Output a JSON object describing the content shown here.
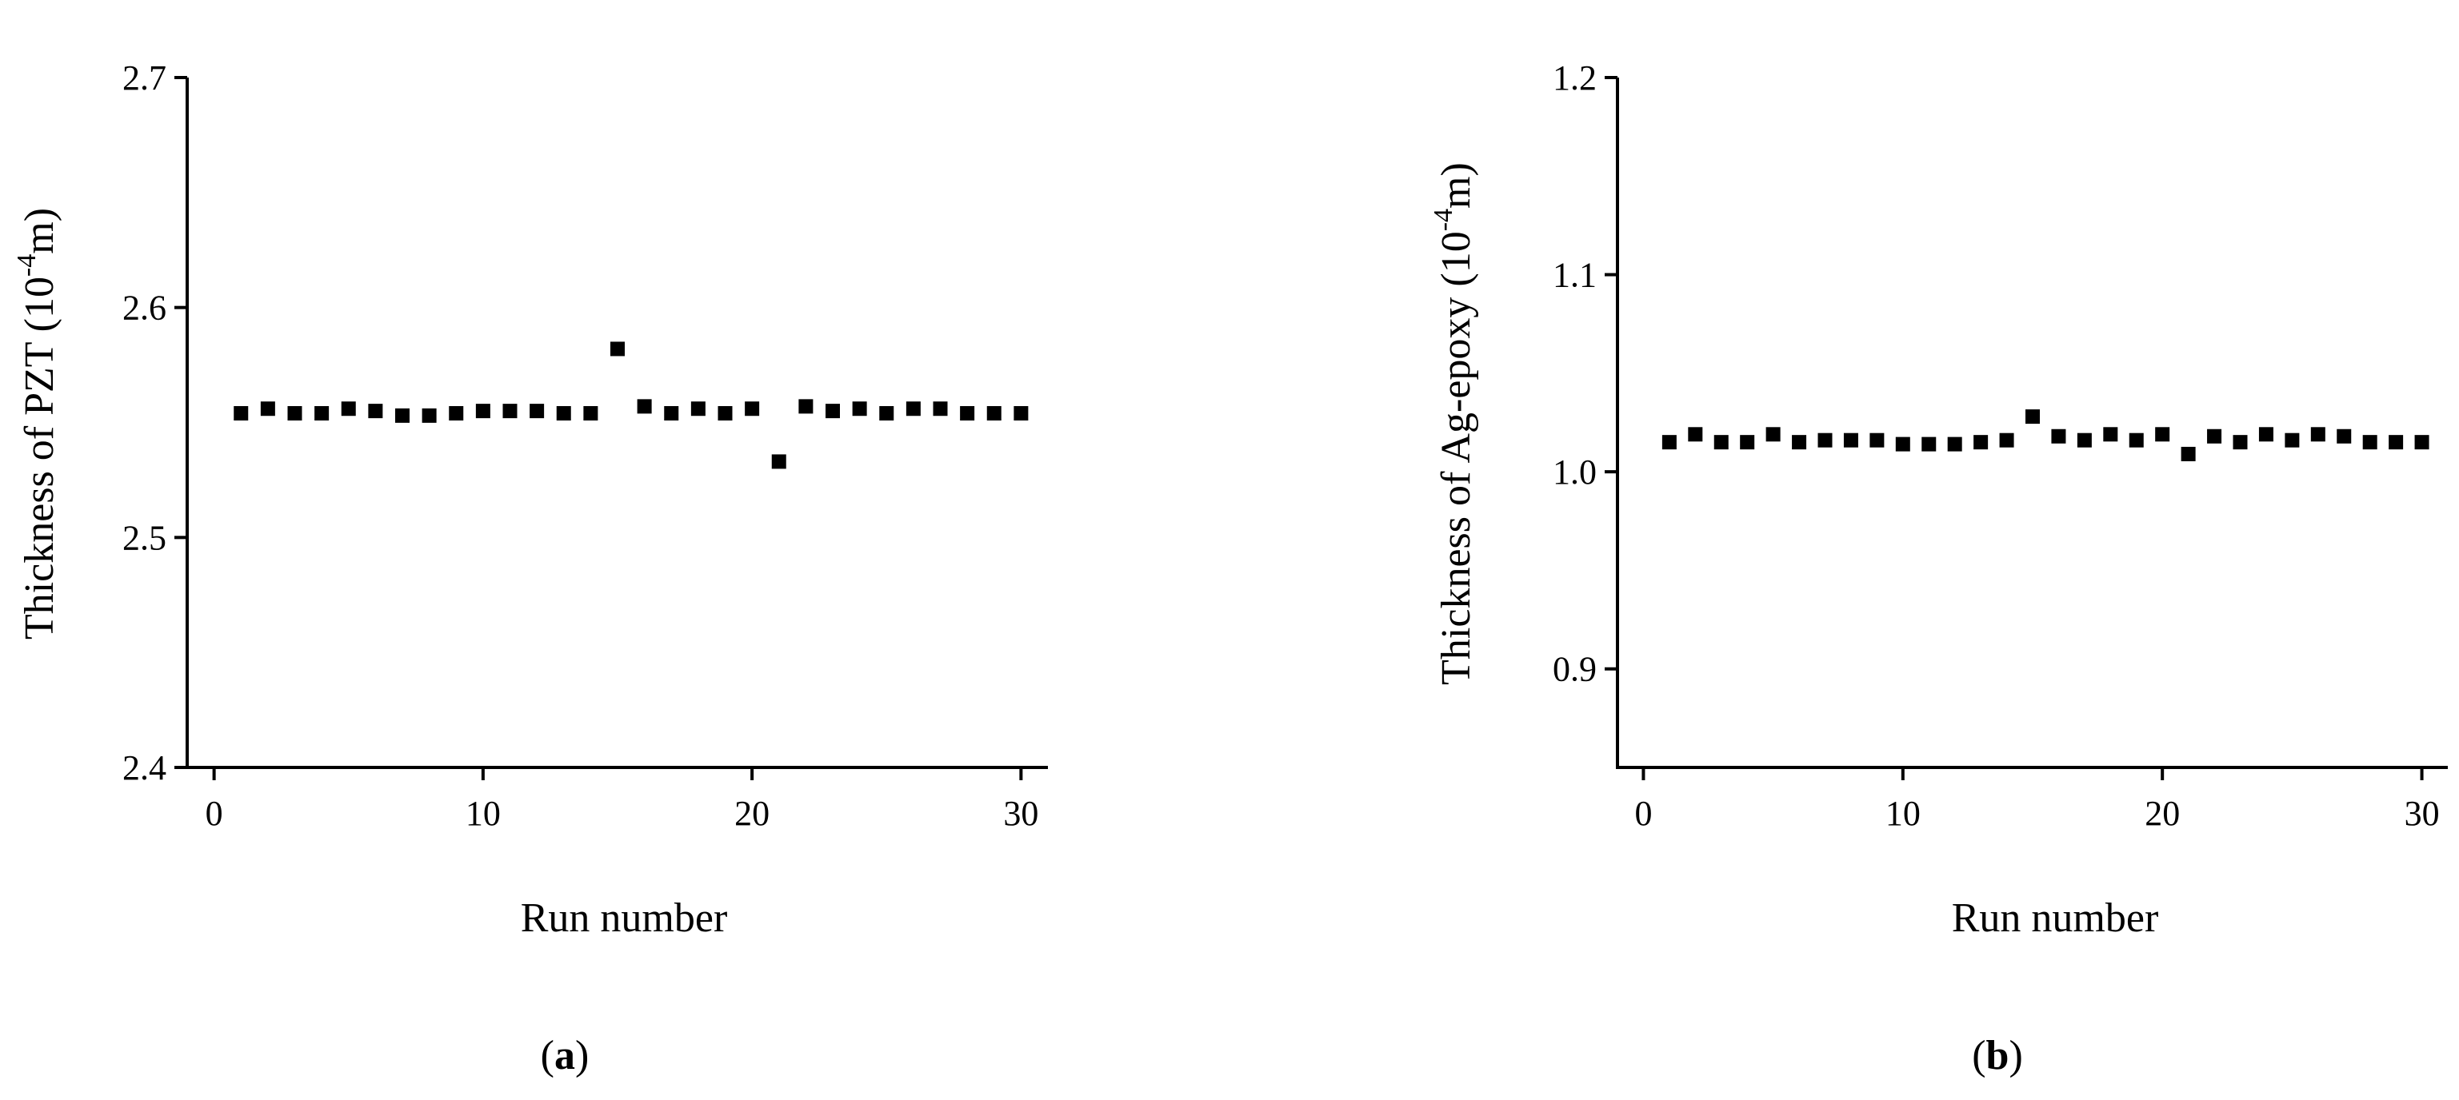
{
  "chart_data": [
    {
      "type": "scatter",
      "panel_label": "a",
      "xlabel": "Run number",
      "ylabel_main": "Thickness of PZT (10",
      "ylabel_sup": "-4",
      "ylabel_end": "m)",
      "xlim": [
        -1,
        31
      ],
      "ylim": [
        2.4,
        2.7
      ],
      "xticks": [
        "0",
        "10",
        "20",
        "30"
      ],
      "xtick_values": [
        0,
        10,
        20,
        30
      ],
      "yticks": [
        "2.4",
        "2.5",
        "2.6",
        "2.7"
      ],
      "ytick_values": [
        2.4,
        2.5,
        2.6,
        2.7
      ],
      "grid": false,
      "marker_color": "#000000",
      "x": [
        1,
        2,
        3,
        4,
        5,
        6,
        7,
        8,
        9,
        10,
        11,
        12,
        13,
        14,
        15,
        16,
        17,
        18,
        19,
        20,
        21,
        22,
        23,
        24,
        25,
        26,
        27,
        28,
        29,
        30
      ],
      "y": [
        2.554,
        2.556,
        2.554,
        2.554,
        2.556,
        2.555,
        2.553,
        2.553,
        2.554,
        2.555,
        2.555,
        2.555,
        2.554,
        2.554,
        2.582,
        2.557,
        2.554,
        2.556,
        2.554,
        2.556,
        2.533,
        2.557,
        2.555,
        2.556,
        2.554,
        2.556,
        2.556,
        2.554,
        2.554,
        2.554
      ]
    },
    {
      "type": "scatter",
      "panel_label": "b",
      "xlabel": "Run number",
      "ylabel_main": "Thickness of Ag-epoxy (10",
      "ylabel_sup": "-4",
      "ylabel_end": "m)",
      "xlim": [
        -1,
        31
      ],
      "ylim": [
        0.85,
        1.2
      ],
      "xticks": [
        "0",
        "10",
        "20",
        "30"
      ],
      "xtick_values": [
        0,
        10,
        20,
        30
      ],
      "yticks": [
        "0.9",
        "1.0",
        "1.1",
        "1.2"
      ],
      "ytick_values": [
        0.9,
        1.0,
        1.1,
        1.2
      ],
      "grid": false,
      "marker_color": "#000000",
      "x": [
        1,
        2,
        3,
        4,
        5,
        6,
        7,
        8,
        9,
        10,
        11,
        12,
        13,
        14,
        15,
        16,
        17,
        18,
        19,
        20,
        21,
        22,
        23,
        24,
        25,
        26,
        27,
        28,
        29,
        30
      ],
      "y": [
        1.015,
        1.019,
        1.015,
        1.015,
        1.019,
        1.015,
        1.016,
        1.016,
        1.016,
        1.014,
        1.014,
        1.014,
        1.015,
        1.016,
        1.028,
        1.018,
        1.016,
        1.019,
        1.016,
        1.019,
        1.009,
        1.018,
        1.015,
        1.019,
        1.016,
        1.019,
        1.018,
        1.015,
        1.015,
        1.015
      ]
    }
  ]
}
